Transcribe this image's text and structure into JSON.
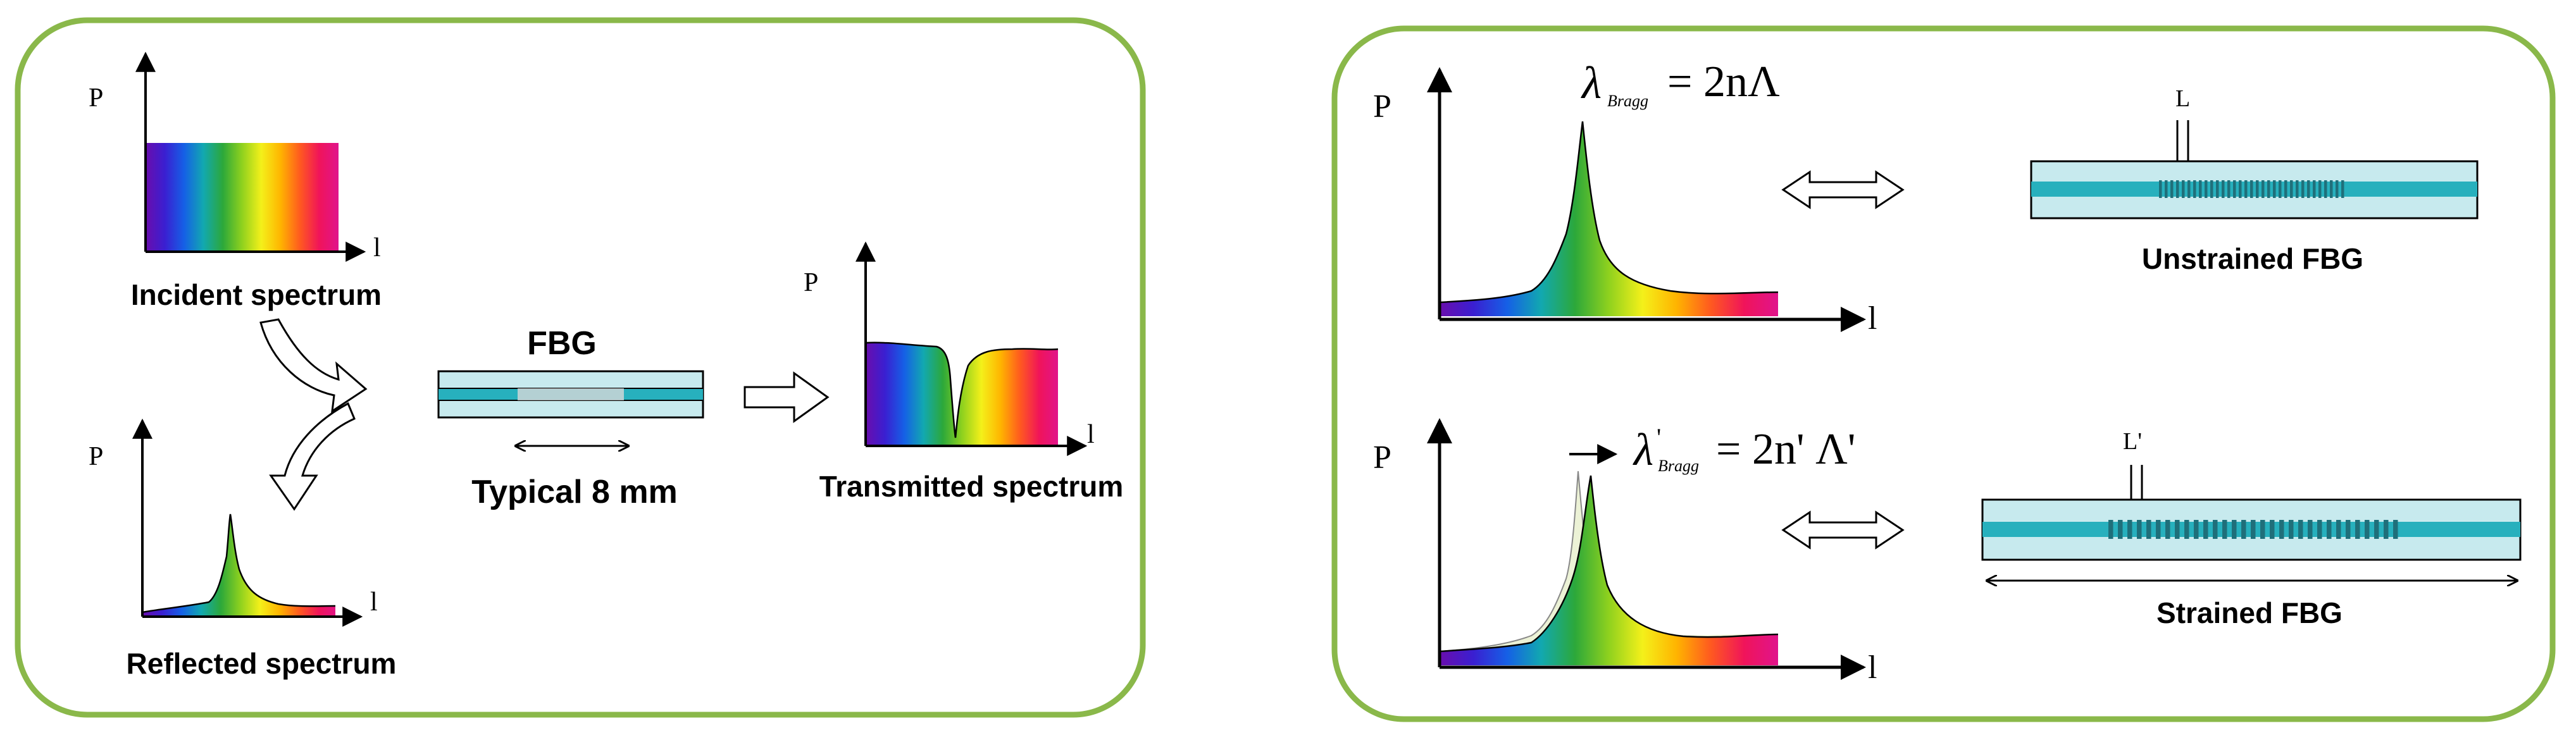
{
  "colors": {
    "panel_border": "#8ab84a",
    "fiber_outer": "#c7eaee",
    "fiber_core": "#27b0bd",
    "grating": "#1f6f7a",
    "grating_faded": "#d8d8d8",
    "axis": "#000000"
  },
  "spectrum_colors": [
    "#6a0dad",
    "#3a1fd1",
    "#1560e6",
    "#12a8b0",
    "#2ca83a",
    "#8fd11e",
    "#f4f01a",
    "#ffb400",
    "#ff5a1f",
    "#f0145a",
    "#e0148c"
  ],
  "left_panel": {
    "incident": {
      "y_axis": "P",
      "x_axis": "l",
      "caption": "Incident spectrum"
    },
    "reflected": {
      "y_axis": "P",
      "x_axis": "l",
      "caption": "Reflected spectrum"
    },
    "transmitted": {
      "y_axis": "P",
      "x_axis": "l",
      "caption": "Transmitted spectrum"
    },
    "fbg": {
      "label": "FBG",
      "length_label": "Typical 8 mm"
    },
    "icons": [
      "curved-arrow-icon",
      "curved-arrow-icon",
      "right-arrow-icon"
    ]
  },
  "right_panel": {
    "unstrained": {
      "y_axis": "P",
      "x_axis": "l",
      "equation_lhs": "λ",
      "equation_sub": "Bragg",
      "equation_rhs": "= 2nΛ",
      "period_label": "L",
      "caption": "Unstrained FBG"
    },
    "strained": {
      "y_axis": "P",
      "x_axis": "l",
      "equation_lhs": "λ",
      "equation_prime": "'",
      "equation_sub": "Bragg",
      "equation_rhs": "= 2n' Λ'",
      "period_label": "L'",
      "caption": "Strained FBG"
    },
    "icons": [
      "double-arrow-icon",
      "double-arrow-icon",
      "shift-arrow-icon"
    ]
  }
}
